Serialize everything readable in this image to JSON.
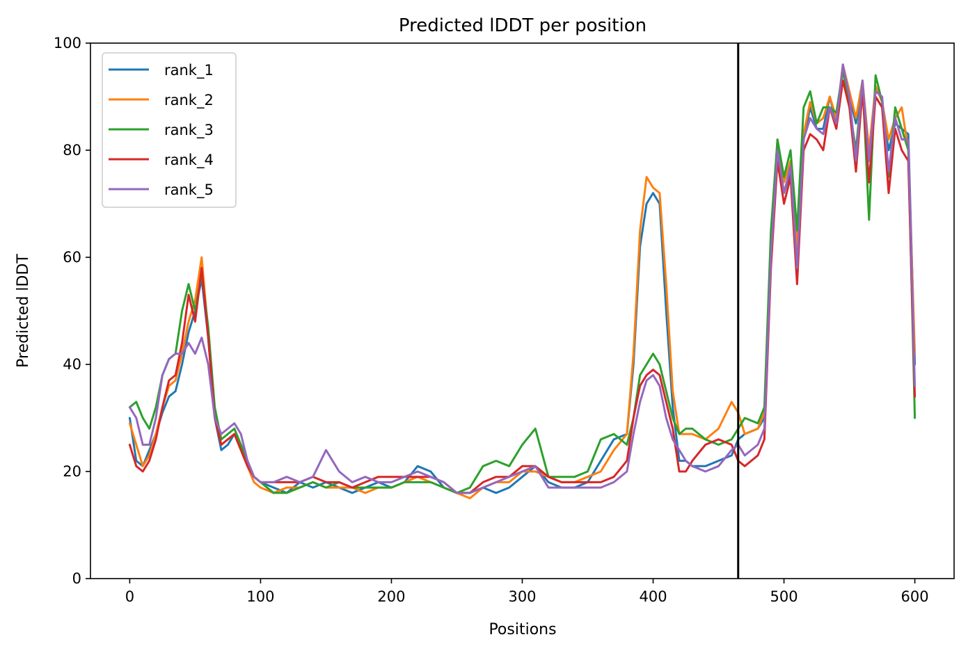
{
  "chart_data": {
    "type": "line",
    "title": "Predicted lDDT per position",
    "xlabel": "Positions",
    "ylabel": "Predicted lDDT",
    "xlim": [
      -30,
      630
    ],
    "ylim": [
      0,
      100
    ],
    "xticks": [
      0,
      100,
      200,
      300,
      400,
      500,
      600
    ],
    "yticks": [
      0,
      20,
      40,
      60,
      80,
      100
    ],
    "grid": false,
    "legend_position": "top-left",
    "vertical_line": {
      "x": 465,
      "color": "#000000"
    },
    "series": [
      {
        "name": "rank_1",
        "color": "#1f77b4",
        "x": [
          0,
          5,
          10,
          15,
          20,
          25,
          30,
          35,
          40,
          45,
          50,
          55,
          60,
          65,
          70,
          75,
          80,
          85,
          90,
          95,
          100,
          110,
          120,
          130,
          140,
          150,
          160,
          170,
          180,
          190,
          200,
          210,
          220,
          230,
          240,
          250,
          260,
          270,
          280,
          290,
          300,
          310,
          320,
          330,
          340,
          350,
          360,
          370,
          380,
          385,
          390,
          395,
          400,
          405,
          410,
          415,
          420,
          425,
          430,
          440,
          450,
          460,
          465,
          470,
          480,
          485,
          490,
          495,
          500,
          505,
          510,
          515,
          520,
          525,
          530,
          535,
          540,
          545,
          550,
          555,
          560,
          565,
          570,
          575,
          580,
          585,
          590,
          595,
          600
        ],
        "values": [
          30,
          22,
          21,
          24,
          27,
          31,
          34,
          35,
          40,
          46,
          50,
          56,
          45,
          30,
          24,
          25,
          27,
          25,
          22,
          19,
          18,
          17,
          16,
          18,
          17,
          18,
          17,
          16,
          17,
          18,
          17,
          18,
          21,
          20,
          17,
          16,
          16,
          17,
          16,
          17,
          19,
          21,
          18,
          17,
          17,
          18,
          22,
          26,
          27,
          40,
          62,
          70,
          72,
          70,
          50,
          32,
          22,
          22,
          21,
          21,
          22,
          23,
          26,
          27,
          28,
          30,
          60,
          80,
          72,
          76,
          60,
          82,
          88,
          84,
          84,
          90,
          85,
          95,
          90,
          85,
          92,
          78,
          90,
          88,
          80,
          85,
          84,
          83,
          40
        ]
      },
      {
        "name": "rank_2",
        "color": "#ff7f0e",
        "x": [
          0,
          5,
          10,
          15,
          20,
          25,
          30,
          35,
          40,
          45,
          50,
          55,
          60,
          65,
          70,
          75,
          80,
          85,
          90,
          95,
          100,
          110,
          120,
          130,
          140,
          150,
          160,
          170,
          180,
          190,
          200,
          210,
          220,
          230,
          240,
          250,
          260,
          270,
          280,
          290,
          300,
          310,
          320,
          330,
          340,
          350,
          360,
          370,
          380,
          385,
          390,
          395,
          400,
          405,
          410,
          415,
          420,
          425,
          430,
          440,
          450,
          460,
          465,
          470,
          480,
          485,
          490,
          495,
          500,
          505,
          510,
          515,
          520,
          525,
          530,
          535,
          540,
          545,
          550,
          555,
          560,
          565,
          570,
          575,
          580,
          585,
          590,
          595,
          600
        ],
        "values": [
          29,
          25,
          21,
          23,
          27,
          32,
          36,
          37,
          42,
          48,
          52,
          60,
          46,
          31,
          25,
          26,
          27,
          24,
          21,
          18,
          17,
          16,
          17,
          17,
          18,
          17,
          17,
          17,
          16,
          17,
          17,
          18,
          19,
          18,
          17,
          16,
          15,
          17,
          18,
          18,
          20,
          20,
          19,
          18,
          18,
          19,
          20,
          24,
          27,
          42,
          65,
          75,
          73,
          72,
          55,
          35,
          27,
          27,
          27,
          26,
          28,
          33,
          31,
          27,
          28,
          31,
          62,
          82,
          74,
          78,
          62,
          83,
          89,
          85,
          86,
          90,
          86,
          96,
          91,
          86,
          93,
          80,
          92,
          89,
          82,
          86,
          88,
          80,
          42
        ]
      },
      {
        "name": "rank_3",
        "color": "#2ca02c",
        "x": [
          0,
          5,
          10,
          15,
          20,
          25,
          30,
          35,
          40,
          45,
          50,
          55,
          60,
          65,
          70,
          75,
          80,
          85,
          90,
          95,
          100,
          110,
          120,
          130,
          140,
          150,
          160,
          170,
          180,
          190,
          200,
          210,
          220,
          230,
          240,
          250,
          260,
          270,
          280,
          290,
          300,
          310,
          320,
          330,
          340,
          350,
          360,
          370,
          380,
          385,
          390,
          395,
          400,
          405,
          410,
          415,
          420,
          425,
          430,
          440,
          450,
          460,
          465,
          470,
          480,
          485,
          490,
          495,
          500,
          505,
          510,
          515,
          520,
          525,
          530,
          535,
          540,
          545,
          550,
          555,
          560,
          565,
          570,
          575,
          580,
          585,
          590,
          595,
          600
        ],
        "values": [
          32,
          33,
          30,
          28,
          32,
          38,
          41,
          42,
          50,
          55,
          50,
          57,
          47,
          32,
          26,
          27,
          28,
          25,
          22,
          19,
          18,
          16,
          16,
          17,
          18,
          17,
          18,
          17,
          17,
          17,
          17,
          18,
          18,
          18,
          17,
          16,
          17,
          21,
          22,
          21,
          25,
          28,
          19,
          19,
          19,
          20,
          26,
          27,
          25,
          30,
          38,
          40,
          42,
          40,
          35,
          30,
          27,
          28,
          28,
          26,
          25,
          26,
          28,
          30,
          29,
          32,
          65,
          82,
          75,
          80,
          65,
          88,
          91,
          85,
          88,
          88,
          87,
          95,
          88,
          80,
          93,
          67,
          94,
          89,
          75,
          88,
          84,
          80,
          30
        ]
      },
      {
        "name": "rank_4",
        "color": "#d62728",
        "x": [
          0,
          5,
          10,
          15,
          20,
          25,
          30,
          35,
          40,
          45,
          50,
          55,
          60,
          65,
          70,
          75,
          80,
          85,
          90,
          95,
          100,
          110,
          120,
          130,
          140,
          150,
          160,
          170,
          180,
          190,
          200,
          210,
          220,
          230,
          240,
          250,
          260,
          270,
          280,
          290,
          300,
          310,
          320,
          330,
          340,
          350,
          360,
          370,
          380,
          385,
          390,
          395,
          400,
          405,
          410,
          415,
          420,
          425,
          430,
          440,
          450,
          460,
          465,
          470,
          480,
          485,
          490,
          495,
          500,
          505,
          510,
          515,
          520,
          525,
          530,
          535,
          540,
          545,
          550,
          555,
          560,
          565,
          570,
          575,
          580,
          585,
          590,
          595,
          600
        ],
        "values": [
          25,
          21,
          20,
          22,
          26,
          32,
          37,
          38,
          44,
          53,
          48,
          58,
          45,
          30,
          25,
          26,
          27,
          24,
          21,
          19,
          18,
          18,
          18,
          18,
          19,
          18,
          18,
          17,
          18,
          19,
          19,
          19,
          19,
          19,
          18,
          16,
          16,
          18,
          19,
          19,
          21,
          21,
          19,
          18,
          18,
          18,
          18,
          19,
          22,
          30,
          36,
          38,
          39,
          38,
          33,
          28,
          20,
          20,
          22,
          25,
          26,
          25,
          22,
          21,
          23,
          26,
          58,
          78,
          70,
          75,
          55,
          80,
          83,
          82,
          80,
          88,
          84,
          93,
          88,
          76,
          91,
          74,
          90,
          88,
          72,
          84,
          80,
          78,
          34
        ]
      },
      {
        "name": "rank_5",
        "color": "#9467bd",
        "x": [
          0,
          5,
          10,
          15,
          20,
          25,
          30,
          35,
          40,
          45,
          50,
          55,
          60,
          65,
          70,
          75,
          80,
          85,
          90,
          95,
          100,
          110,
          120,
          130,
          140,
          150,
          160,
          170,
          180,
          190,
          200,
          210,
          220,
          230,
          240,
          250,
          260,
          270,
          280,
          290,
          300,
          310,
          320,
          330,
          340,
          350,
          360,
          370,
          380,
          385,
          390,
          395,
          400,
          405,
          410,
          415,
          420,
          425,
          430,
          440,
          450,
          460,
          465,
          470,
          480,
          485,
          490,
          495,
          500,
          505,
          510,
          515,
          520,
          525,
          530,
          535,
          540,
          545,
          550,
          555,
          560,
          565,
          570,
          575,
          580,
          585,
          590,
          595,
          600
        ],
        "values": [
          32,
          30,
          25,
          25,
          30,
          38,
          41,
          42,
          42,
          44,
          42,
          45,
          40,
          30,
          27,
          28,
          29,
          27,
          22,
          19,
          18,
          18,
          19,
          18,
          19,
          24,
          20,
          18,
          19,
          18,
          18,
          19,
          20,
          19,
          18,
          16,
          16,
          17,
          18,
          19,
          20,
          21,
          17,
          17,
          17,
          17,
          17,
          18,
          20,
          27,
          33,
          37,
          38,
          36,
          30,
          26,
          24,
          22,
          21,
          20,
          21,
          24,
          25,
          23,
          25,
          28,
          60,
          80,
          72,
          77,
          58,
          82,
          86,
          84,
          83,
          88,
          85,
          96,
          90,
          78,
          93,
          78,
          91,
          90,
          76,
          86,
          82,
          82,
          36
        ]
      }
    ]
  }
}
